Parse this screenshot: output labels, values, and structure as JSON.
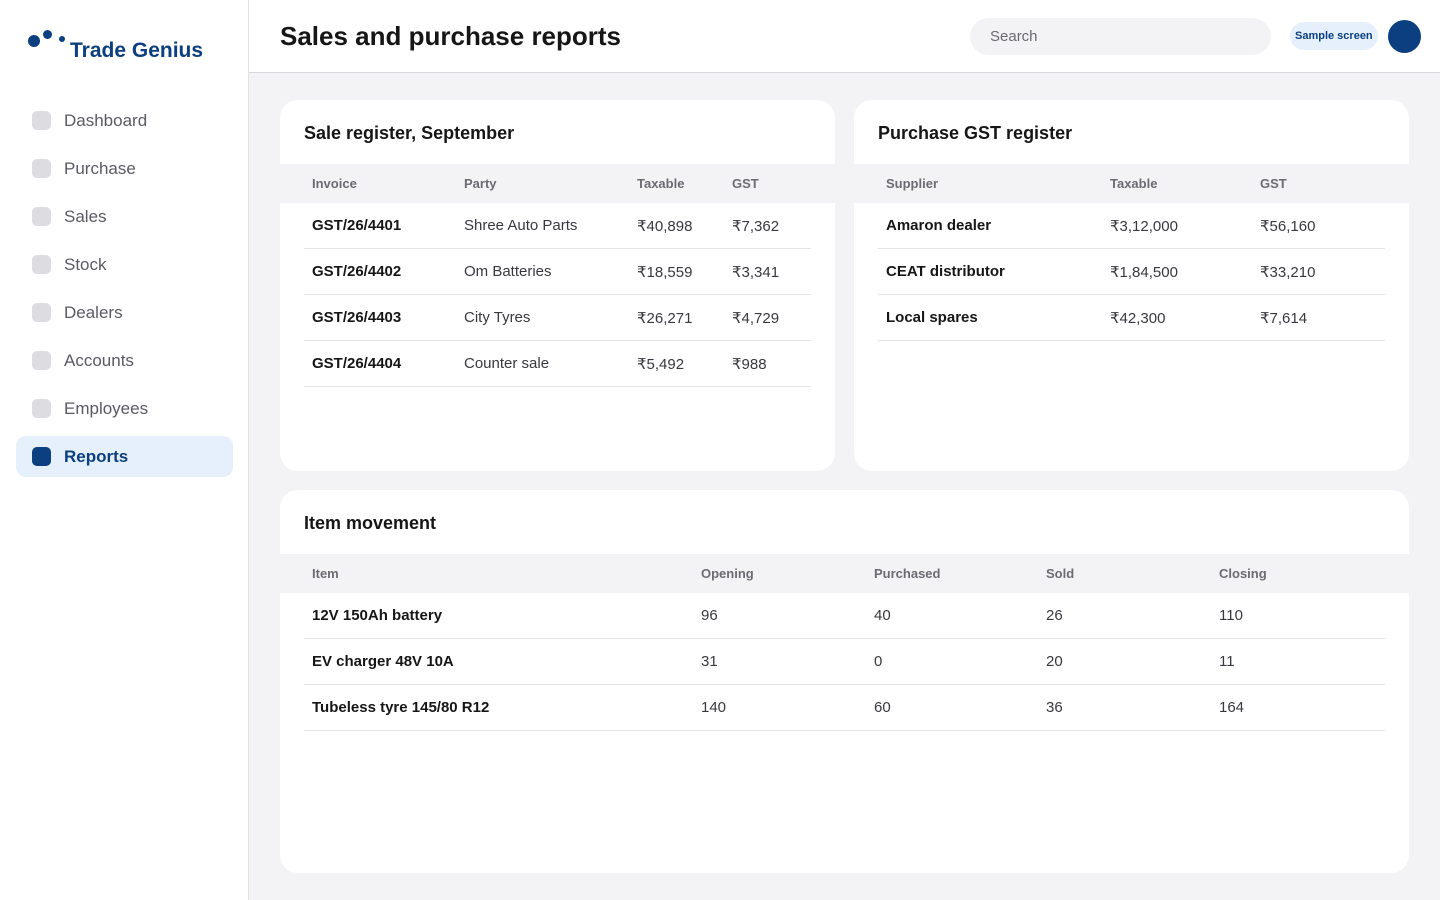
{
  "brand": {
    "name": "Trade Genius"
  },
  "sidebar": {
    "items": [
      {
        "label": "Dashboard",
        "active": false
      },
      {
        "label": "Purchase",
        "active": false
      },
      {
        "label": "Sales",
        "active": false
      },
      {
        "label": "Stock",
        "active": false
      },
      {
        "label": "Dealers",
        "active": false
      },
      {
        "label": "Accounts",
        "active": false
      },
      {
        "label": "Employees",
        "active": false
      },
      {
        "label": "Reports",
        "active": true
      }
    ]
  },
  "header": {
    "title": "Sales and purchase reports",
    "search_placeholder": "Search",
    "badge": "Sample screen"
  },
  "sale_register": {
    "title": "Sale register, September",
    "columns": [
      "Invoice",
      "Party",
      "Taxable",
      "GST"
    ],
    "rows": [
      [
        "GST/26/4401",
        "Shree Auto Parts",
        "₹40,898",
        "₹7,362"
      ],
      [
        "GST/26/4402",
        "Om Batteries",
        "₹18,559",
        "₹3,341"
      ],
      [
        "GST/26/4403",
        "City Tyres",
        "₹26,271",
        "₹4,729"
      ],
      [
        "GST/26/4404",
        "Counter sale",
        "₹5,492",
        "₹988"
      ]
    ]
  },
  "purchase_register": {
    "title": "Purchase GST register",
    "columns": [
      "Supplier",
      "Taxable",
      "GST"
    ],
    "rows": [
      [
        "Amaron dealer",
        "₹3,12,000",
        "₹56,160"
      ],
      [
        "CEAT distributor",
        "₹1,84,500",
        "₹33,210"
      ],
      [
        "Local spares",
        "₹42,300",
        "₹7,614"
      ]
    ]
  },
  "item_movement": {
    "title": "Item movement",
    "columns": [
      "Item",
      "Opening",
      "Purchased",
      "Sold",
      "Closing"
    ],
    "rows": [
      [
        "12V 150Ah battery",
        "96",
        "40",
        "26",
        "110"
      ],
      [
        "EV charger 48V 10A",
        "31",
        "0",
        "20",
        "11"
      ],
      [
        "Tubeless tyre 145/80 R12",
        "140",
        "60",
        "36",
        "164"
      ]
    ]
  },
  "colors": {
    "accent": "#0b3f7f",
    "accent_light": "#e6f0fc",
    "background": "#f3f3f5"
  }
}
